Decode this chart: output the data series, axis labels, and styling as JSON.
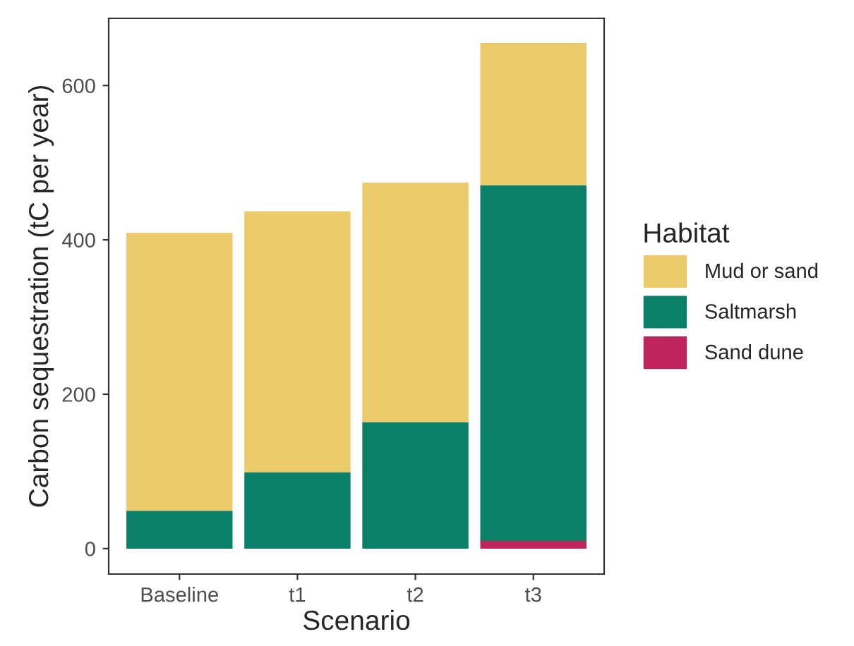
{
  "chart_data": {
    "type": "bar",
    "stacked": true,
    "xlabel": "Scenario",
    "ylabel": "Carbon sequestration (tC per year)",
    "legend_title": "Habitat",
    "legend": "right",
    "categories": [
      "Baseline",
      "t1",
      "t2",
      "t3"
    ],
    "series": [
      {
        "name": "Sand dune",
        "color": "#c0245c",
        "values": [
          0,
          0,
          0,
          10
        ]
      },
      {
        "name": "Saltmarsh",
        "color": "#0b8068",
        "values": [
          49,
          99,
          164,
          461
        ]
      },
      {
        "name": "Mud or sand",
        "color": "#ebcb6b",
        "values": [
          360,
          338,
          310,
          184
        ]
      }
    ],
    "ylim": [
      -33,
      687
    ],
    "yticks": [
      0,
      200,
      400,
      600
    ],
    "grid": false
  }
}
